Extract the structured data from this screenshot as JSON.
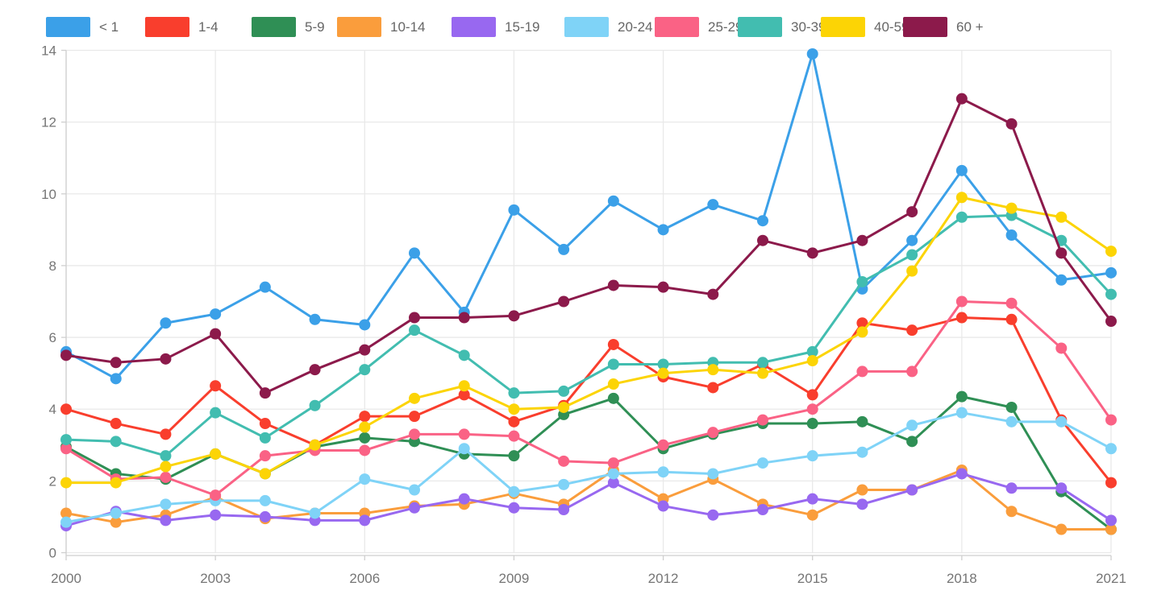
{
  "chart_data": {
    "type": "line",
    "title": "",
    "xlabel": "",
    "ylabel": "",
    "xlim": [
      2000,
      2021
    ],
    "ylim": [
      0,
      14
    ],
    "grid": true,
    "legend_position": "top",
    "x": [
      2000,
      2001,
      2002,
      2003,
      2004,
      2005,
      2006,
      2007,
      2008,
      2009,
      2010,
      2011,
      2012,
      2013,
      2014,
      2015,
      2016,
      2017,
      2018,
      2019,
      2020,
      2021
    ],
    "x_tick_labels": [
      "2000",
      "2003",
      "2006",
      "2009",
      "2012",
      "2015",
      "2018",
      "2021"
    ],
    "x_tick_values": [
      2000,
      2003,
      2006,
      2009,
      2012,
      2015,
      2018,
      2021
    ],
    "y_tick_labels": [
      "0",
      "2",
      "4",
      "6",
      "8",
      "10",
      "12",
      "14"
    ],
    "y_tick_values": [
      0,
      2,
      4,
      6,
      8,
      10,
      12,
      14
    ],
    "series": [
      {
        "name": "< 1",
        "color": "#3BA0E8",
        "values": [
          5.6,
          4.85,
          6.4,
          6.65,
          7.4,
          6.5,
          6.35,
          8.35,
          6.7,
          9.55,
          8.45,
          9.8,
          9.0,
          9.7,
          9.25,
          13.9,
          7.35,
          8.7,
          10.65,
          8.85,
          7.6,
          7.8
        ]
      },
      {
        "name": "1-4",
        "color": "#F93E2D",
        "values": [
          4.0,
          3.6,
          3.3,
          4.65,
          3.6,
          3.0,
          3.8,
          3.8,
          4.4,
          3.65,
          4.1,
          5.8,
          4.9,
          4.6,
          5.25,
          4.4,
          6.4,
          6.2,
          6.55,
          6.5,
          3.7,
          1.95
        ]
      },
      {
        "name": "5-9",
        "color": "#2F8F55",
        "values": [
          2.95,
          2.2,
          2.05,
          2.75,
          2.2,
          2.95,
          3.2,
          3.1,
          2.75,
          2.7,
          3.85,
          4.3,
          2.9,
          3.3,
          3.6,
          3.6,
          3.65,
          3.1,
          4.35,
          4.05,
          1.7,
          0.65
        ]
      },
      {
        "name": "10-14",
        "color": "#FA9D3C",
        "values": [
          1.1,
          0.85,
          1.05,
          1.55,
          0.95,
          1.1,
          1.1,
          1.3,
          1.35,
          1.65,
          1.35,
          2.3,
          1.5,
          2.05,
          1.35,
          1.05,
          1.75,
          1.75,
          2.3,
          1.15,
          0.65,
          0.65
        ]
      },
      {
        "name": "15-19",
        "color": "#9868F0",
        "values": [
          0.75,
          1.15,
          0.9,
          1.05,
          1.0,
          0.9,
          0.9,
          1.25,
          1.5,
          1.25,
          1.2,
          1.95,
          1.3,
          1.05,
          1.2,
          1.5,
          1.35,
          1.75,
          2.2,
          1.8,
          1.8,
          0.9
        ]
      },
      {
        "name": "20-24",
        "color": "#7FD3F7",
        "values": [
          0.85,
          1.1,
          1.35,
          1.45,
          1.45,
          1.1,
          2.05,
          1.75,
          2.9,
          1.7,
          1.9,
          2.2,
          2.25,
          2.2,
          2.5,
          2.7,
          2.8,
          3.55,
          3.9,
          3.65,
          3.65,
          2.9
        ]
      },
      {
        "name": "25-29",
        "color": "#FA6285",
        "values": [
          2.9,
          2.05,
          2.1,
          1.6,
          2.7,
          2.85,
          2.85,
          3.3,
          3.3,
          3.25,
          2.55,
          2.5,
          3.0,
          3.35,
          3.7,
          4.0,
          5.05,
          5.05,
          7.0,
          6.95,
          5.7,
          3.7
        ]
      },
      {
        "name": "30-39",
        "color": "#42BDB0",
        "values": [
          3.15,
          3.1,
          2.7,
          3.9,
          3.2,
          4.1,
          5.1,
          6.2,
          5.5,
          4.45,
          4.5,
          5.25,
          5.25,
          5.3,
          5.3,
          5.6,
          7.55,
          8.3,
          9.35,
          9.4,
          8.7,
          7.2
        ]
      },
      {
        "name": "40-59",
        "color": "#FCD405",
        "values": [
          1.95,
          1.95,
          2.4,
          2.75,
          2.2,
          3.0,
          3.5,
          4.3,
          4.65,
          4.0,
          4.05,
          4.7,
          5.0,
          5.1,
          5.0,
          5.35,
          6.15,
          7.85,
          9.9,
          9.6,
          9.35,
          8.4
        ]
      },
      {
        "name": "60 +",
        "color": "#8C1A4B",
        "values": [
          5.5,
          5.3,
          5.4,
          6.1,
          4.45,
          5.1,
          5.65,
          6.55,
          6.55,
          6.6,
          7.0,
          7.45,
          7.4,
          7.2,
          8.7,
          8.35,
          8.7,
          9.5,
          12.65,
          11.95,
          8.35,
          6.45
        ]
      }
    ]
  },
  "styles": {
    "background": "#ffffff",
    "grid_color": "#e9e9e9",
    "axis_color": "#cfcfcf",
    "tick_label_color": "#757575",
    "legend_text_color": "#666666"
  }
}
